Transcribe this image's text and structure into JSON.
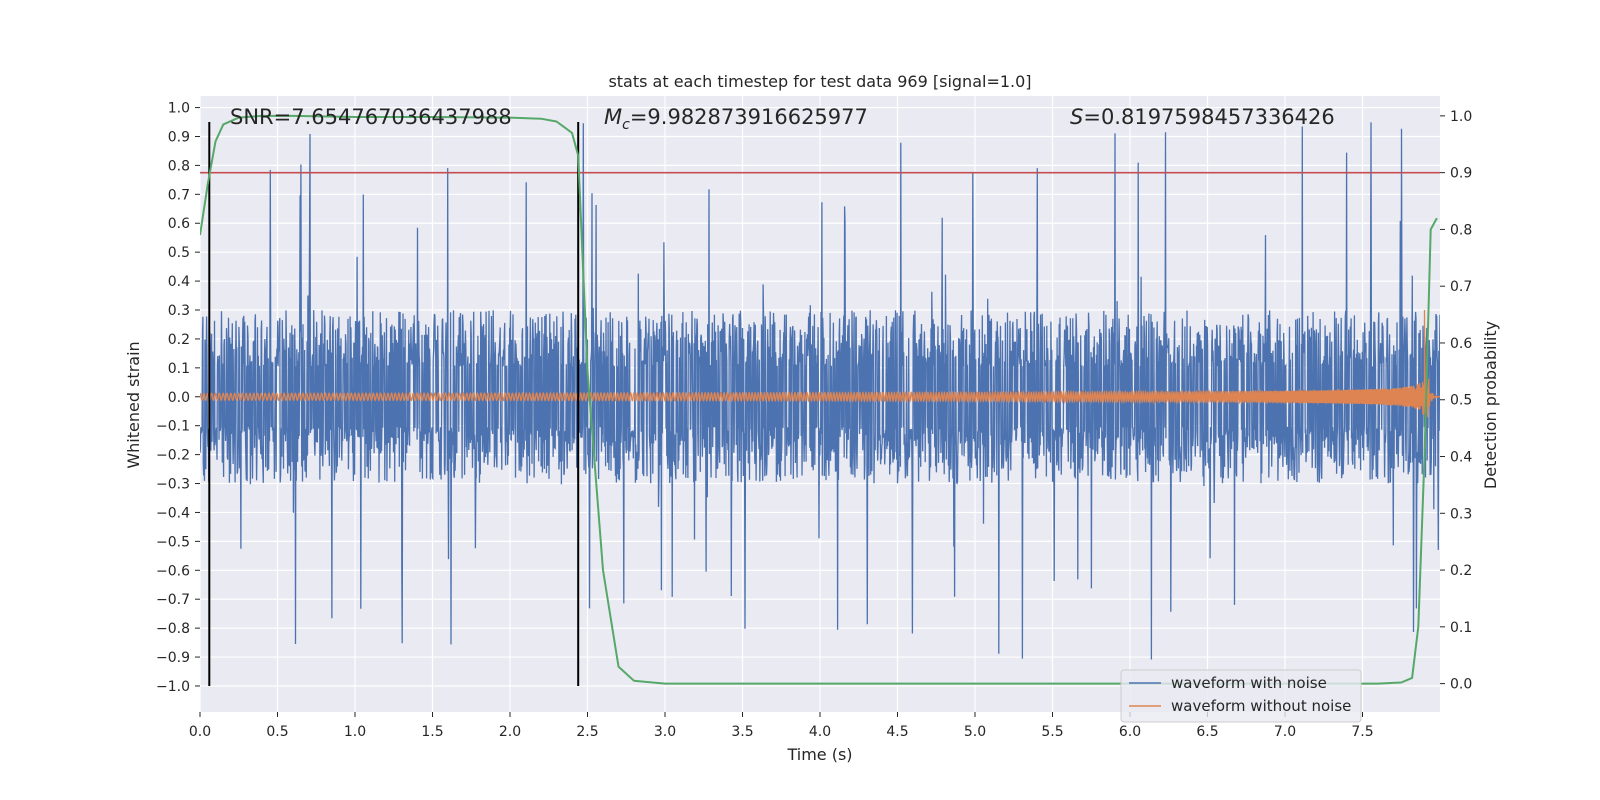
{
  "chart_data": {
    "type": "line",
    "title": "stats at each timestep for test data 969 [signal=1.0]",
    "xlabel": "Time (s)",
    "ylabel": "Whitened strain",
    "y2label": "Detection probability",
    "xlim": [
      0.0,
      8.0
    ],
    "ylim": [
      -1.09,
      1.04
    ],
    "y2lim": [
      -0.05,
      1.035
    ],
    "xticks": [
      0.0,
      0.5,
      1.0,
      1.5,
      2.0,
      2.5,
      3.0,
      3.5,
      4.0,
      4.5,
      5.0,
      5.5,
      6.0,
      6.5,
      7.0,
      7.5
    ],
    "xtick_labels": [
      "0.0",
      "0.5",
      "1.0",
      "1.5",
      "2.0",
      "2.5",
      "3.0",
      "3.5",
      "4.0",
      "4.5",
      "5.0",
      "5.5",
      "6.0",
      "6.5",
      "7.0",
      "7.5"
    ],
    "yticks": [
      1.0,
      0.9,
      0.8,
      0.7,
      0.6,
      0.5,
      0.4,
      0.3,
      0.2,
      0.1,
      0.0,
      -0.1,
      -0.2,
      -0.3,
      -0.4,
      -0.5,
      -0.6,
      -0.7,
      -0.8,
      -0.9,
      -1.0
    ],
    "ytick_labels": [
      "1.0",
      "0.9",
      "0.8",
      "0.7",
      "0.6",
      "0.5",
      "0.4",
      "0.3",
      "0.2",
      "0.1",
      "0.0",
      "−0.1",
      "−0.2",
      "−0.3",
      "−0.4",
      "−0.5",
      "−0.6",
      "−0.7",
      "−0.8",
      "−0.9",
      "−1.0"
    ],
    "y2ticks": [
      1.0,
      0.9,
      0.8,
      0.7,
      0.6,
      0.5,
      0.4,
      0.3,
      0.2,
      0.1,
      0.0
    ],
    "y2tick_labels": [
      "1.0",
      "0.9",
      "0.8",
      "0.7",
      "0.6",
      "0.5",
      "0.4",
      "0.3",
      "0.2",
      "0.1",
      "0.0"
    ],
    "annotations": {
      "snr": "SNR=7.654767036437988",
      "mc": "=9.982873916625977",
      "mc_symbol": "M",
      "mc_sub": "c",
      "s": "=0.8197598457336426",
      "s_symbol": "S"
    },
    "vlines_x": [
      0.06,
      2.44
    ],
    "vline_range": [
      -1.0,
      0.95
    ],
    "threshold_y2": 0.9,
    "legend": {
      "position": "lower-right",
      "entries": [
        {
          "label": "waveform with noise",
          "color": "#4c72b0"
        },
        {
          "label": "waveform without noise",
          "color": "#dd8452"
        }
      ]
    },
    "series": [
      {
        "name": "waveform with noise",
        "color": "#4c72b0",
        "axis": "left",
        "kind": "noise",
        "typical_amplitude": 0.3,
        "peak_amplitude": 0.95
      },
      {
        "name": "waveform without noise",
        "color": "#dd8452",
        "axis": "left",
        "kind": "chirp",
        "amplitude_start": 0.012,
        "amplitude_end": 0.3,
        "merger_time": 7.9
      },
      {
        "name": "detection probability",
        "color": "#55a868",
        "axis": "right",
        "x": [
          0.0,
          0.05,
          0.1,
          0.15,
          0.25,
          0.4,
          0.6,
          1.0,
          1.5,
          2.0,
          2.2,
          2.3,
          2.35,
          2.4,
          2.44,
          2.5,
          2.6,
          2.7,
          2.8,
          3.0,
          4.0,
          5.0,
          6.0,
          7.0,
          7.6,
          7.75,
          7.82,
          7.86,
          7.9,
          7.94,
          7.98
        ],
        "y": [
          0.79,
          0.88,
          0.955,
          0.985,
          0.997,
          1.0,
          1.0,
          0.998,
          0.998,
          0.997,
          0.995,
          0.99,
          0.98,
          0.97,
          0.93,
          0.55,
          0.2,
          0.03,
          0.005,
          0.0,
          0.0,
          0.0,
          0.0,
          0.0,
          0.0,
          0.002,
          0.01,
          0.1,
          0.4,
          0.8,
          0.82
        ]
      }
    ]
  }
}
